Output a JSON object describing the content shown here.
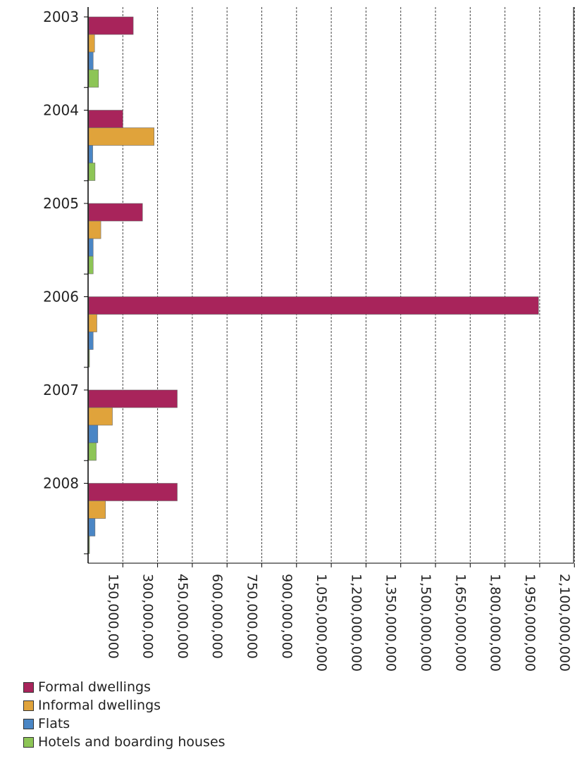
{
  "chart_data": {
    "type": "bar",
    "orientation": "horizontal",
    "title": "",
    "xlabel": "",
    "ylabel": "",
    "categories": [
      "2003",
      "2004",
      "2005",
      "2006",
      "2007",
      "2008"
    ],
    "series": [
      {
        "name": "Formal dwellings",
        "color": "#A8245B",
        "values": [
          195000000,
          150000000,
          235000000,
          1945000000,
          385000000,
          385000000
        ]
      },
      {
        "name": "Informal dwellings",
        "color": "#E0A33B",
        "values": [
          28000000,
          285000000,
          55000000,
          38000000,
          105000000,
          75000000
        ]
      },
      {
        "name": "Flats",
        "color": "#4A86C5",
        "values": [
          22000000,
          20000000,
          22000000,
          22000000,
          42000000,
          30000000
        ]
      },
      {
        "name": "Hotels and boarding houses",
        "color": "#8DC556",
        "values": [
          45000000,
          30000000,
          22000000,
          3000000,
          35000000,
          3000000
        ]
      }
    ],
    "x_ticks": [
      150000000,
      300000000,
      450000000,
      600000000,
      750000000,
      900000000,
      1050000000,
      1200000000,
      1350000000,
      1500000000,
      1650000000,
      1800000000,
      1950000000,
      2100000000
    ],
    "x_tick_labels": [
      "150,000,000",
      "300,000,000",
      "450,000,000",
      "600,000,000",
      "750,000,000",
      "900,000,000",
      "1,050,000,000",
      "1,200,000,000",
      "1,350,000,000",
      "1,500,000,000",
      "1,650,000,000",
      "1,800,000,000",
      "1,950,000,000",
      "2,100,000,000"
    ],
    "xlim": [
      0,
      2100000000
    ],
    "grid": "vertical dashed",
    "legend_position": "bottom-left"
  }
}
